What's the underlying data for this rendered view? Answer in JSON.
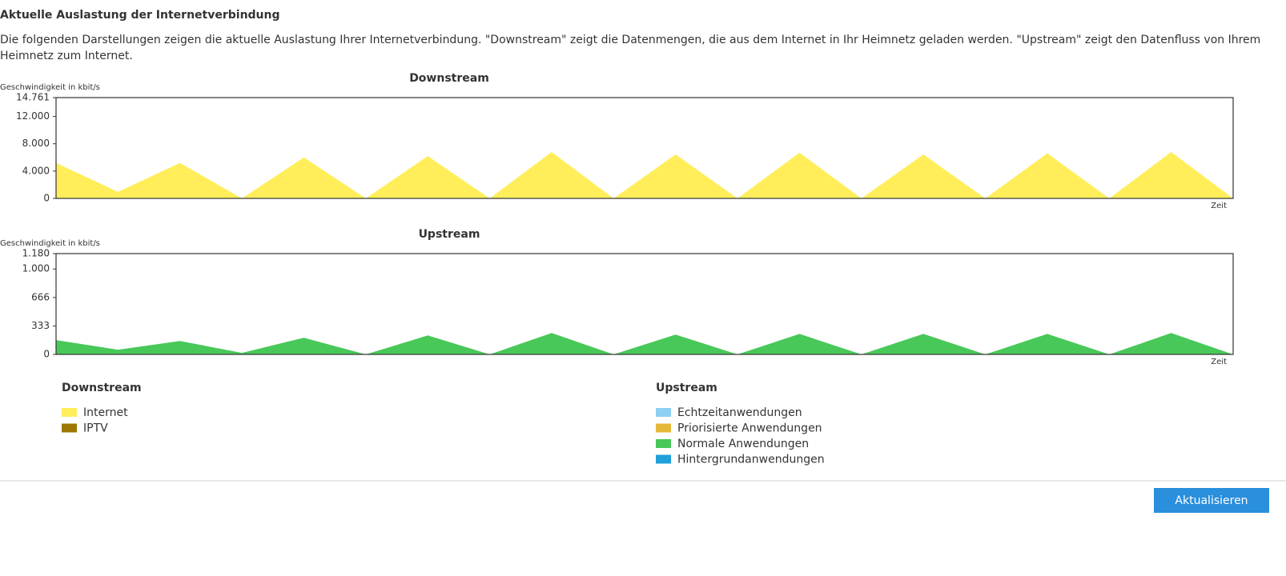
{
  "header": {
    "title": "Aktuelle Auslastung der Internetverbindung",
    "description": "Die folgenden Darstellungen zeigen die aktuelle Auslastung Ihrer Internetverbindung. \"Downstream\" zeigt die Datenmengen, die aus dem Internet in Ihr Heimnetz geladen werden. \"Upstream\" zeigt den Datenfluss von Ihrem Heimnetz zum Internet."
  },
  "chart_data": [
    {
      "type": "area",
      "title": "Downstream",
      "y_label": "Geschwindigkeit in kbit/s",
      "x_label": "Zeit",
      "ylim": [
        0,
        14761
      ],
      "yticks": [
        0,
        {
          "value": 4000,
          "label": "4.000"
        },
        {
          "value": 8000,
          "label": "8.000"
        },
        {
          "value": 12000,
          "label": "12.000"
        },
        {
          "value": 14761,
          "label": "14.761"
        }
      ],
      "series": [
        {
          "color": "#ffee5a",
          "values": [
            5200,
            950,
            5200,
            0,
            6000,
            0,
            6200,
            0,
            6800,
            0,
            6450,
            0,
            6700,
            0,
            6450,
            0,
            6600,
            0,
            6800,
            0
          ]
        }
      ]
    },
    {
      "type": "area",
      "title": "Upstream",
      "y_label": "Geschwindigkeit in kbit/s",
      "x_label": "Zeit",
      "ylim": [
        0,
        1180
      ],
      "yticks": [
        0,
        333,
        666,
        {
          "value": 1000,
          "label": "1.000"
        },
        {
          "value": 1180,
          "label": "1.180"
        }
      ],
      "series": [
        {
          "color": "#48c858",
          "values": [
            167,
            55,
            157,
            18,
            195,
            0,
            222,
            0,
            250,
            0,
            232,
            0,
            240,
            0,
            240,
            0,
            240,
            0,
            250,
            0
          ]
        }
      ]
    }
  ],
  "legends": [
    {
      "title": "Downstream",
      "items": [
        {
          "name": "Internet",
          "color": "#ffee5a"
        },
        {
          "name": "IPTV",
          "color": "#9c7800"
        }
      ]
    },
    {
      "title": "Upstream",
      "items": [
        {
          "name": "Echtzeitanwendungen",
          "color": "#8ecff2"
        },
        {
          "name": "Priorisierte Anwendungen",
          "color": "#e6b838"
        },
        {
          "name": "Normale Anwendungen",
          "color": "#48c858"
        },
        {
          "name": "Hintergrundanwendungen",
          "color": "#1fa0d8"
        }
      ]
    }
  ],
  "button": {
    "label": "Aktualisieren"
  }
}
